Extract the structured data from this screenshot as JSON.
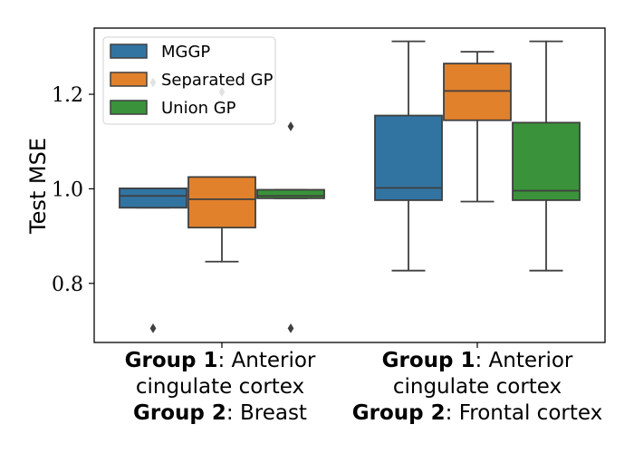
{
  "chart_data": {
    "type": "box",
    "ylabel": "Test MSE",
    "ylim": [
      0.675,
      1.34
    ],
    "yticks": [
      "0.8",
      "1.0",
      "1.2"
    ],
    "ytick_values": [
      0.8,
      1.0,
      1.2
    ],
    "legend_position": "top-left",
    "categories": [
      {
        "lines": [
          {
            "bold": "Group 1",
            "rest": ": Anterior"
          },
          {
            "bold": "",
            "rest": "cingulate cortex"
          },
          {
            "bold": "Group 2",
            "rest": ": Breast"
          }
        ]
      },
      {
        "lines": [
          {
            "bold": "Group 1",
            "rest": ": Anterior"
          },
          {
            "bold": "",
            "rest": "cingulate cortex"
          },
          {
            "bold": "Group 2",
            "rest": ": Frontal cortex"
          }
        ]
      }
    ],
    "series": [
      {
        "name": "MGGP",
        "color": "#3274a1",
        "boxes": [
          {
            "whisker_low": 0.96,
            "q1": 0.96,
            "median": 0.985,
            "q3": 1.001,
            "whisker_high": 1.001,
            "outliers": [
              0.705,
              1.225
            ]
          },
          {
            "whisker_low": 0.827,
            "q1": 0.976,
            "median": 1.002,
            "q3": 1.155,
            "whisker_high": 1.312,
            "outliers": []
          }
        ]
      },
      {
        "name": "Separated GP",
        "color": "#e1812c",
        "boxes": [
          {
            "whisker_low": 0.846,
            "q1": 0.918,
            "median": 0.978,
            "q3": 1.025,
            "whisker_high": 1.025,
            "outliers": [
              1.205
            ]
          },
          {
            "whisker_low": 0.973,
            "q1": 1.145,
            "median": 1.207,
            "q3": 1.265,
            "whisker_high": 1.29,
            "outliers": []
          }
        ]
      },
      {
        "name": "Union GP",
        "color": "#3a923a",
        "boxes": [
          {
            "whisker_low": 0.98,
            "q1": 0.98,
            "median": 0.985,
            "q3": 0.998,
            "whisker_high": 0.998,
            "outliers": [
              0.705,
              1.132
            ]
          },
          {
            "whisker_low": 0.827,
            "q1": 0.976,
            "median": 0.996,
            "q3": 1.14,
            "whisker_high": 1.312,
            "outliers": []
          }
        ]
      }
    ]
  }
}
